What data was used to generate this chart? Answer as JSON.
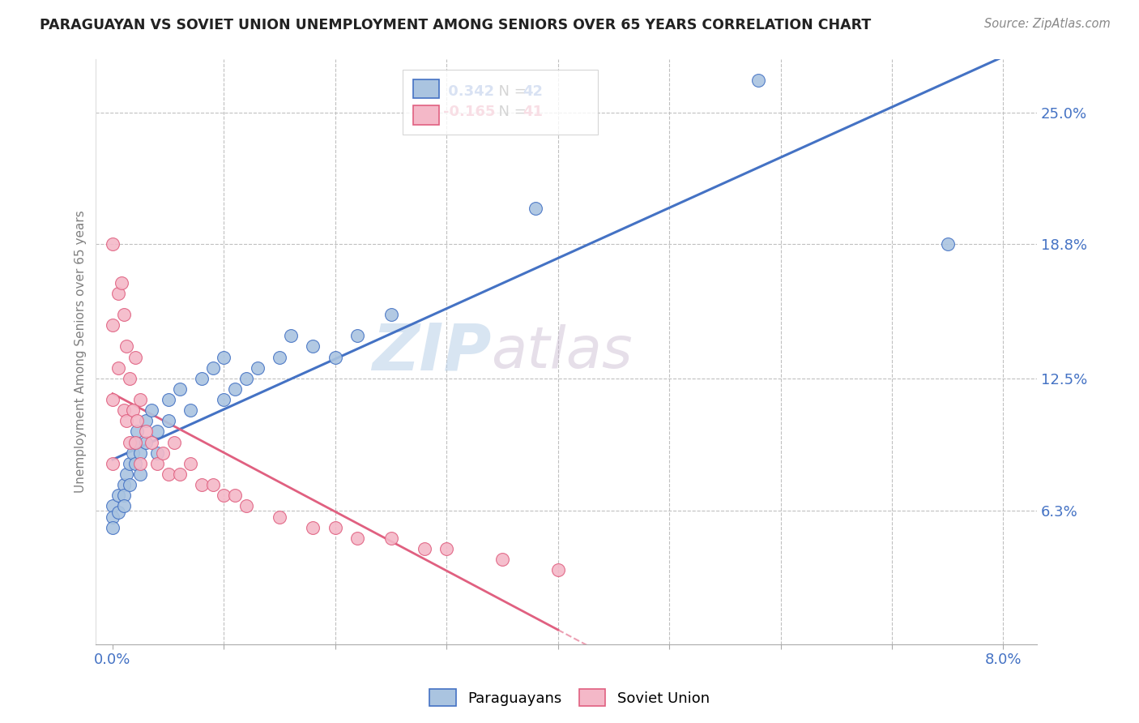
{
  "title": "PARAGUAYAN VS SOVIET UNION UNEMPLOYMENT AMONG SENIORS OVER 65 YEARS CORRELATION CHART",
  "source": "Source: ZipAtlas.com",
  "ylabel": "Unemployment Among Seniors over 65 years",
  "ytick_labels": [
    "6.3%",
    "12.5%",
    "18.8%",
    "25.0%"
  ],
  "ytick_values": [
    6.3,
    12.5,
    18.8,
    25.0
  ],
  "legend_paraguayans": "Paraguayans",
  "legend_soviet": "Soviet Union",
  "r_paraguayan": 0.342,
  "n_paraguayan": 42,
  "r_soviet": -0.165,
  "n_soviet": 41,
  "blue_color": "#aac4e0",
  "pink_color": "#f4b8c8",
  "blue_line_color": "#4472c4",
  "pink_line_color": "#e06080",
  "watermark_zip": "ZIP",
  "watermark_atlas": "atlas",
  "background_color": "#ffffff",
  "paraguayan_x": [
    0.0,
    0.0,
    0.0,
    0.05,
    0.05,
    0.1,
    0.1,
    0.1,
    0.12,
    0.15,
    0.15,
    0.18,
    0.2,
    0.2,
    0.22,
    0.25,
    0.25,
    0.3,
    0.3,
    0.35,
    0.4,
    0.4,
    0.5,
    0.5,
    0.6,
    0.7,
    0.8,
    0.9,
    1.0,
    1.0,
    1.1,
    1.2,
    1.3,
    1.5,
    1.6,
    1.8,
    2.0,
    2.2,
    2.5,
    3.8,
    5.8,
    7.5
  ],
  "paraguayan_y": [
    6.5,
    6.0,
    5.5,
    7.0,
    6.2,
    7.5,
    7.0,
    6.5,
    8.0,
    8.5,
    7.5,
    9.0,
    9.5,
    8.5,
    10.0,
    9.0,
    8.0,
    10.5,
    9.5,
    11.0,
    10.0,
    9.0,
    11.5,
    10.5,
    12.0,
    11.0,
    12.5,
    13.0,
    11.5,
    13.5,
    12.0,
    12.5,
    13.0,
    13.5,
    14.5,
    14.0,
    13.5,
    14.5,
    15.5,
    20.5,
    26.5,
    18.8
  ],
  "soviet_x": [
    0.0,
    0.0,
    0.0,
    0.0,
    0.05,
    0.05,
    0.08,
    0.1,
    0.1,
    0.12,
    0.12,
    0.15,
    0.15,
    0.18,
    0.2,
    0.2,
    0.22,
    0.25,
    0.25,
    0.3,
    0.35,
    0.4,
    0.45,
    0.5,
    0.55,
    0.6,
    0.7,
    0.8,
    0.9,
    1.0,
    1.1,
    1.2,
    1.5,
    1.8,
    2.0,
    2.2,
    2.5,
    2.8,
    3.0,
    3.5,
    4.0
  ],
  "soviet_y": [
    18.8,
    15.0,
    11.5,
    8.5,
    16.5,
    13.0,
    17.0,
    15.5,
    11.0,
    14.0,
    10.5,
    12.5,
    9.5,
    11.0,
    13.5,
    9.5,
    10.5,
    11.5,
    8.5,
    10.0,
    9.5,
    8.5,
    9.0,
    8.0,
    9.5,
    8.0,
    8.5,
    7.5,
    7.5,
    7.0,
    7.0,
    6.5,
    6.0,
    5.5,
    5.5,
    5.0,
    5.0,
    4.5,
    4.5,
    4.0,
    3.5
  ]
}
